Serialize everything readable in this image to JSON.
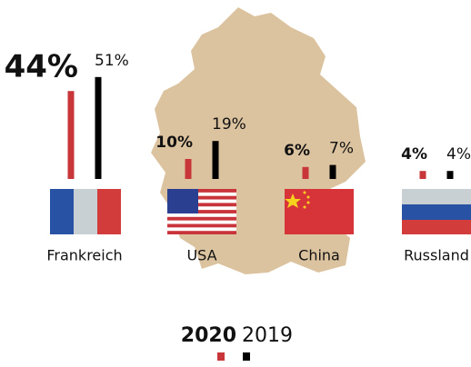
{
  "chart_data": {
    "type": "bar",
    "categories": [
      "Frankreich",
      "USA",
      "China",
      "Russland"
    ],
    "series": [
      {
        "name": "2020",
        "color": "#c9363a",
        "values": [
          44,
          10,
          6,
          4
        ],
        "value_labels": [
          "44%",
          "10%",
          "6%",
          "4%"
        ]
      },
      {
        "name": "2019",
        "color": "#000000",
        "values": [
          51,
          19,
          7,
          4
        ],
        "value_labels": [
          "51%",
          "19%",
          "7%",
          "4%"
        ]
      }
    ]
  }
}
